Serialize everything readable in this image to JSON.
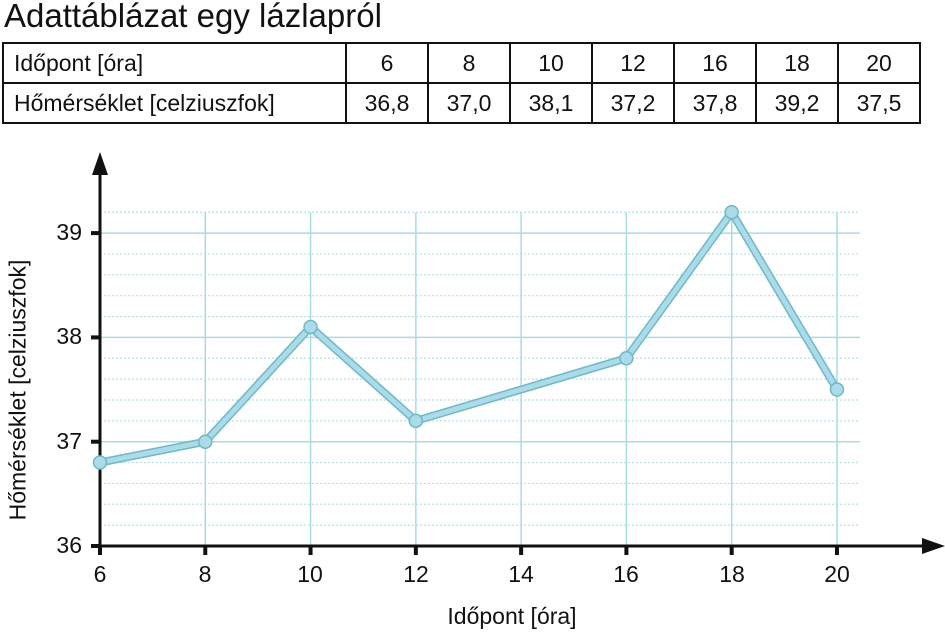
{
  "title": "Adattáblázat egy lázlapról",
  "table": {
    "row_time": {
      "label": "Időpont [óra]",
      "values": [
        "6",
        "8",
        "10",
        "12",
        "16",
        "18",
        "20"
      ]
    },
    "row_temp": {
      "label": "Hőmérséklet [celziuszfok]",
      "values": [
        "36,8",
        "37,0",
        "38,1",
        "37,2",
        "37,8",
        "39,2",
        "37,5"
      ]
    }
  },
  "chart": {
    "xlabel": "Időpont [óra]",
    "ylabel": "Hőmérséklet [celziuszfok]",
    "xticks": [
      "6",
      "8",
      "10",
      "12",
      "14",
      "16",
      "18",
      "20"
    ],
    "yticks": [
      "36",
      "37",
      "38",
      "39"
    ],
    "line_color": "#a9dbe8",
    "line_stroke_color": "#6fb8c8",
    "grid_color": "#a8dce2"
  },
  "chart_data": {
    "type": "line",
    "title": "Adattáblázat egy lázlapról",
    "xlabel": "Időpont [óra]",
    "ylabel": "Hőmérséklet [celziuszfok]",
    "x": [
      6,
      8,
      10,
      12,
      16,
      18,
      20
    ],
    "values": [
      36.8,
      37.0,
      38.1,
      37.2,
      37.8,
      39.2,
      37.5
    ],
    "xticks": [
      6,
      8,
      10,
      12,
      14,
      16,
      18,
      20
    ],
    "yticks": [
      36,
      37,
      38,
      39
    ],
    "xlim": [
      6,
      20
    ],
    "ylim": [
      36,
      39.2
    ],
    "grid": true,
    "legend": null
  }
}
